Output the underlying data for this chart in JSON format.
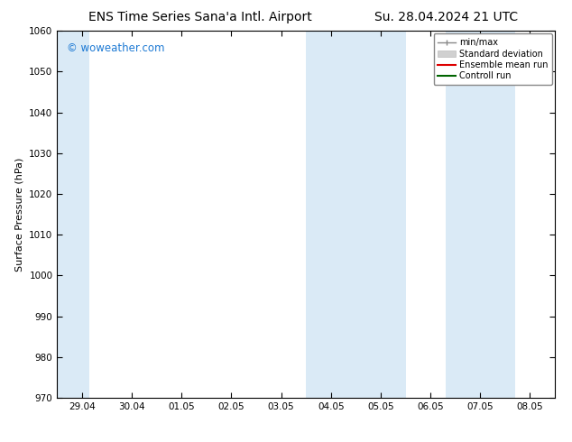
{
  "title_left": "ENS Time Series Sana'a Intl. Airport",
  "title_right": "Su. 28.04.2024 21 UTC",
  "ylabel": "Surface Pressure (hPa)",
  "ylim": [
    970,
    1060
  ],
  "yticks": [
    970,
    980,
    990,
    1000,
    1010,
    1020,
    1030,
    1040,
    1050,
    1060
  ],
  "xtick_labels": [
    "29.04",
    "30.04",
    "01.05",
    "02.05",
    "03.05",
    "04.05",
    "05.05",
    "06.05",
    "07.05",
    "08.05"
  ],
  "xtick_positions": [
    0,
    1,
    2,
    3,
    4,
    5,
    6,
    7,
    8,
    9
  ],
  "watermark": "© woweather.com",
  "watermark_color": "#1e7ad4",
  "background_color": "#ffffff",
  "plot_bg_color": "#ffffff",
  "shaded_regions": [
    {
      "xstart": -0.5,
      "xend": 0.15,
      "color": "#daeaf6"
    },
    {
      "xstart": 4.5,
      "xend": 6.5,
      "color": "#daeaf6"
    },
    {
      "xstart": 7.3,
      "xend": 8.7,
      "color": "#daeaf6"
    }
  ],
  "legend_entries": [
    {
      "label": "min/max",
      "color": "#aaaaaa",
      "lw": 1.2
    },
    {
      "label": "Standard deviation",
      "color": "#cccccc",
      "lw": 6
    },
    {
      "label": "Ensemble mean run",
      "color": "#ff0000",
      "lw": 1.5
    },
    {
      "label": "Controll run",
      "color": "#006400",
      "lw": 1.5
    }
  ],
  "title_fontsize": 10,
  "tick_label_fontsize": 7.5,
  "ylabel_fontsize": 8,
  "border_color": "#000000",
  "tick_color": "#000000"
}
